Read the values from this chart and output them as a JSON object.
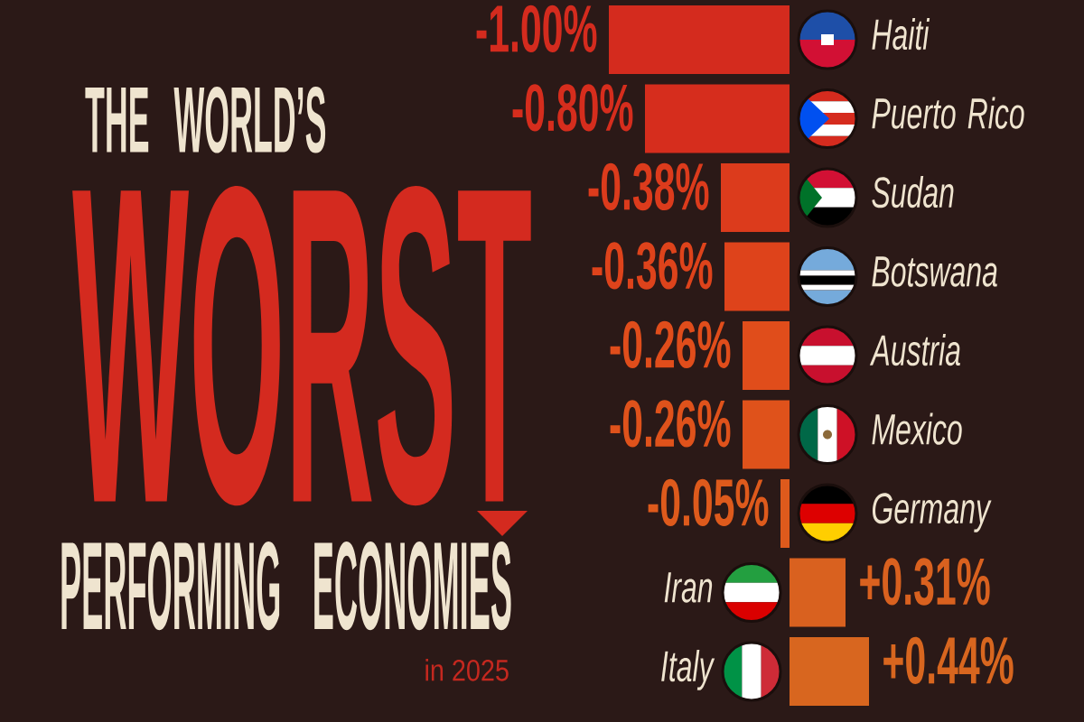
{
  "chart_data": {
    "type": "bar",
    "orientation": "horizontal",
    "title": "THE WORLD’S",
    "subtitle": "in 2025",
    "annotations": [
      "WORST",
      "PERFORMING ECONOMIES"
    ],
    "categories": [
      "Haiti",
      "Puerto Rico",
      "Sudan",
      "Botswana",
      "Austria",
      "Mexico",
      "Germany",
      "Iran",
      "Italy"
    ],
    "values": [
      -1.0,
      -0.8,
      -0.38,
      -0.36,
      -0.26,
      -0.26,
      -0.05,
      0.31,
      0.44
    ],
    "value_labels": [
      "-1.00%",
      "-0.80%",
      "-0.38%",
      "-0.36%",
      "-0.26%",
      "-0.26%",
      "-0.05%",
      "+0.31%",
      "+0.44%"
    ],
    "colors": [
      "#d42b1e",
      "#d62d1d",
      "#dc3b1c",
      "#de431b",
      "#e04d1b",
      "#df521b",
      "#de5a1c",
      "#d9611f",
      "#d8661f"
    ],
    "tick_labels": "y"
  }
}
